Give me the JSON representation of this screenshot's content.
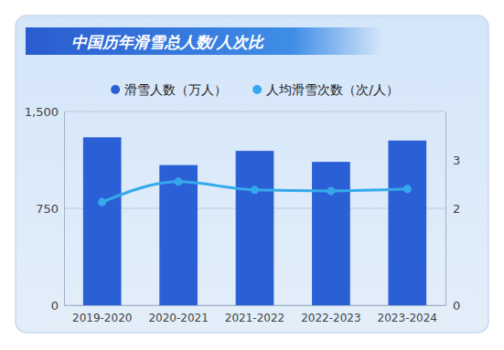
{
  "chart_data": {
    "type": "bar",
    "title": "中国历年滑雪总人数/人次比",
    "categories": [
      "2019-2020",
      "2020-2021",
      "2021-2022",
      "2022-2023",
      "2023-2024"
    ],
    "series": [
      {
        "name": "滑雪人数（万人）",
        "type": "bar",
        "color": "#2b5fd6",
        "values": [
          1300,
          1085,
          1195,
          1110,
          1275
        ]
      },
      {
        "name": "人均滑雪次数（次/人）",
        "type": "line",
        "color": "#36a9ec",
        "marker": "circle",
        "axis": "y2",
        "values": [
          2.13,
          2.55,
          2.38,
          2.36,
          2.4
        ]
      }
    ],
    "ylim": [
      0,
      1500
    ],
    "yticks": [
      0,
      750,
      {
        "value": 1500,
        "label": "1,500"
      }
    ],
    "y2lim": [
      0,
      4
    ],
    "y2ticks": [
      0,
      2,
      3
    ],
    "grid": true,
    "legend": "top"
  }
}
